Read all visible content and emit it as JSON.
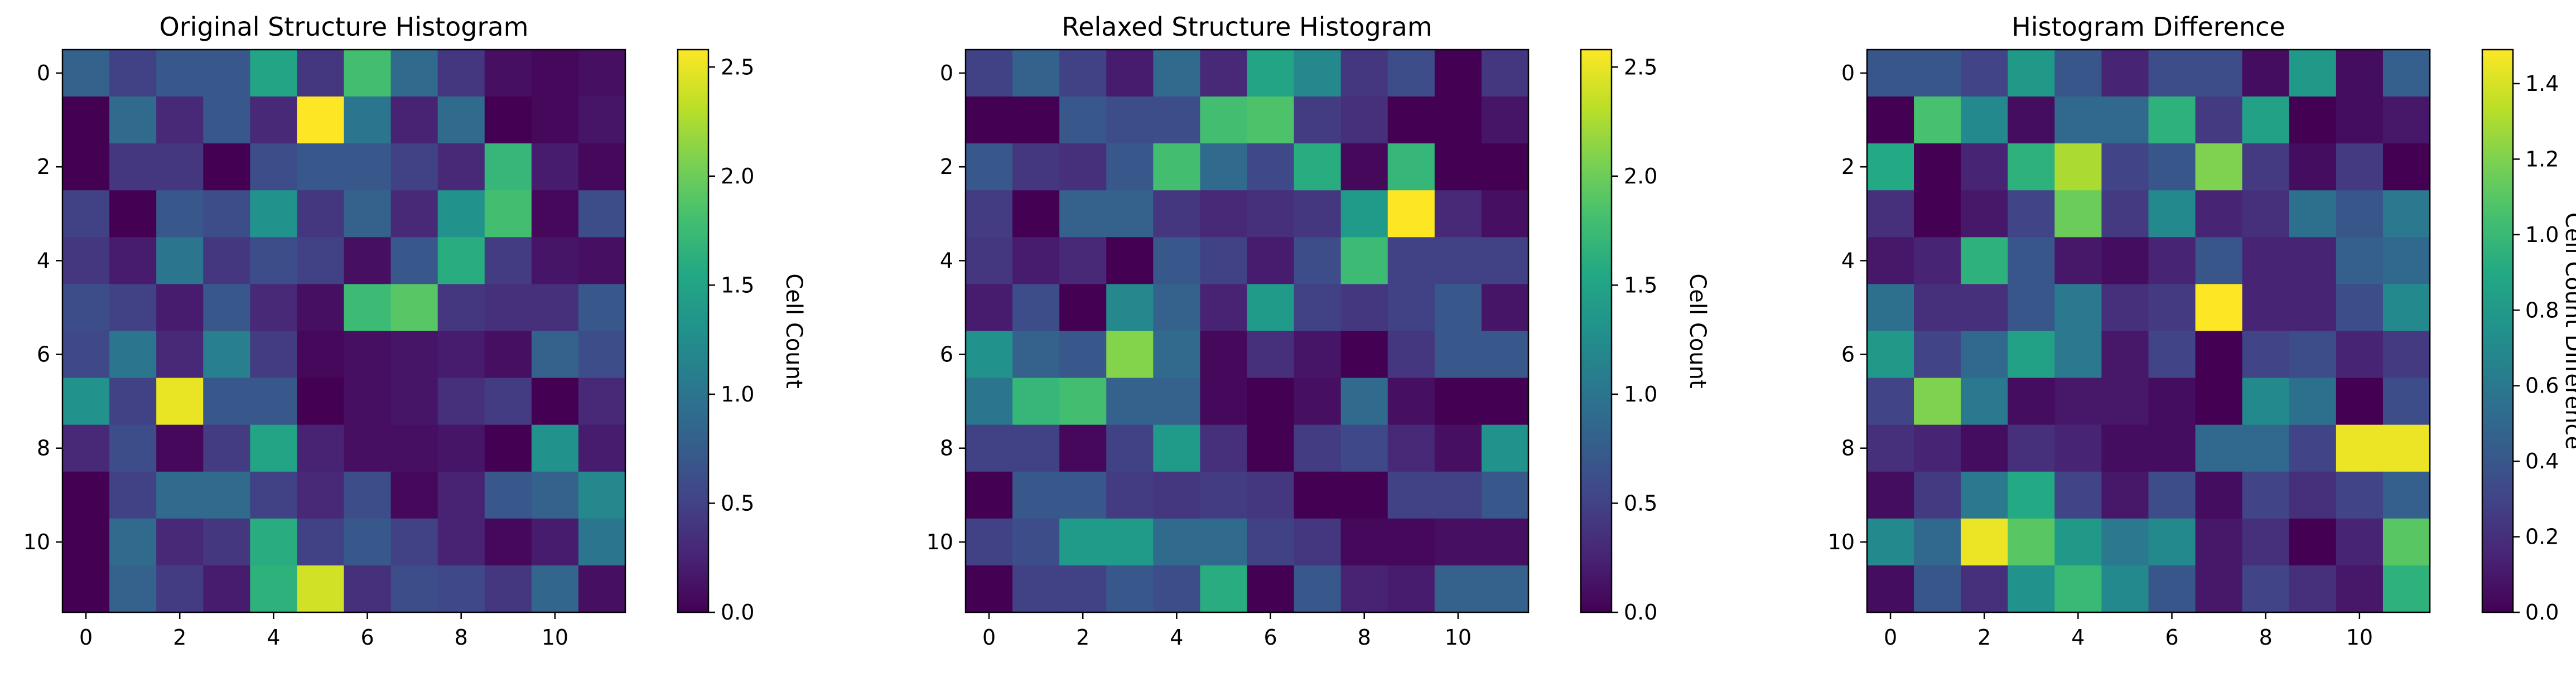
{
  "chart_data": [
    {
      "type": "heatmap",
      "title": "Original Structure Histogram",
      "colorbar_label": "Cell Count",
      "colormap": "viridis",
      "vmin": 0,
      "vmax": 2.58,
      "x_ticks": [
        "0",
        "2",
        "4",
        "6",
        "8",
        "10"
      ],
      "y_ticks": [
        "0",
        "2",
        "4",
        "6",
        "8",
        "10"
      ],
      "colorbar_ticks": [
        "0.0",
        "0.5",
        "1.0",
        "1.5",
        "2.0",
        "2.5"
      ],
      "values": [
        [
          0.8,
          0.5,
          0.7,
          0.7,
          1.5,
          0.4,
          1.8,
          0.9,
          0.4,
          0.1,
          0.05,
          0.1
        ],
        [
          0.0,
          0.9,
          0.3,
          0.7,
          0.3,
          2.58,
          1.0,
          0.25,
          0.9,
          0.0,
          0.05,
          0.15
        ],
        [
          0.0,
          0.4,
          0.4,
          0.0,
          0.6,
          0.7,
          0.7,
          0.5,
          0.3,
          1.7,
          0.2,
          0.05
        ],
        [
          0.5,
          0.0,
          0.7,
          0.6,
          1.3,
          0.4,
          0.8,
          0.3,
          1.3,
          1.8,
          0.05,
          0.6
        ],
        [
          0.4,
          0.2,
          1.0,
          0.4,
          0.6,
          0.5,
          0.1,
          0.7,
          1.6,
          0.45,
          0.15,
          0.1
        ],
        [
          0.6,
          0.5,
          0.2,
          0.7,
          0.3,
          0.1,
          1.75,
          1.9,
          0.4,
          0.35,
          0.35,
          0.7
        ],
        [
          0.55,
          1.0,
          0.3,
          1.1,
          0.45,
          0.05,
          0.1,
          0.15,
          0.2,
          0.1,
          0.8,
          0.6
        ],
        [
          1.3,
          0.5,
          2.5,
          0.7,
          0.7,
          0.0,
          0.1,
          0.15,
          0.35,
          0.45,
          0.0,
          0.3
        ],
        [
          0.3,
          0.6,
          0.05,
          0.45,
          1.5,
          0.25,
          0.1,
          0.1,
          0.15,
          0.0,
          1.3,
          0.2
        ],
        [
          0.0,
          0.5,
          0.9,
          0.9,
          0.5,
          0.3,
          0.6,
          0.05,
          0.25,
          0.7,
          0.8,
          1.2
        ],
        [
          0.0,
          0.9,
          0.3,
          0.4,
          1.6,
          0.5,
          0.7,
          0.5,
          0.25,
          0.05,
          0.2,
          1.0
        ],
        [
          0.0,
          0.8,
          0.45,
          0.2,
          1.65,
          2.4,
          0.35,
          0.6,
          0.55,
          0.4,
          0.85,
          0.1
        ]
      ]
    },
    {
      "type": "heatmap",
      "title": "Relaxed Structure Histogram",
      "colorbar_label": "Cell Count",
      "colormap": "viridis",
      "vmin": 0,
      "vmax": 2.58,
      "x_ticks": [
        "0",
        "2",
        "4",
        "6",
        "8",
        "10"
      ],
      "y_ticks": [
        "0",
        "2",
        "4",
        "6",
        "8",
        "10"
      ],
      "colorbar_ticks": [
        "0.0",
        "0.5",
        "1.0",
        "1.5",
        "2.0",
        "2.5"
      ],
      "values": [
        [
          0.5,
          0.8,
          0.5,
          0.2,
          0.9,
          0.3,
          1.5,
          1.2,
          0.4,
          0.6,
          0.0,
          0.4
        ],
        [
          0.0,
          0.0,
          0.7,
          0.6,
          0.6,
          1.8,
          1.85,
          0.45,
          0.35,
          0.0,
          0.0,
          0.15
        ],
        [
          0.7,
          0.4,
          0.35,
          0.7,
          1.8,
          0.9,
          0.55,
          1.6,
          0.05,
          1.7,
          0.0,
          0.0
        ],
        [
          0.45,
          0.0,
          0.8,
          0.8,
          0.4,
          0.3,
          0.35,
          0.4,
          1.4,
          2.58,
          0.3,
          0.1
        ],
        [
          0.4,
          0.2,
          0.3,
          0.0,
          0.7,
          0.5,
          0.2,
          0.6,
          1.75,
          0.5,
          0.5,
          0.5
        ],
        [
          0.2,
          0.6,
          0.0,
          1.2,
          0.8,
          0.25,
          1.4,
          0.5,
          0.4,
          0.5,
          0.7,
          0.15
        ],
        [
          1.3,
          0.8,
          0.7,
          2.1,
          0.9,
          0.05,
          0.35,
          0.15,
          0.0,
          0.4,
          0.7,
          0.7
        ],
        [
          1.0,
          1.7,
          1.8,
          0.8,
          0.8,
          0.05,
          0.0,
          0.1,
          0.9,
          0.1,
          0.0,
          0.0
        ],
        [
          0.5,
          0.5,
          0.05,
          0.5,
          1.4,
          0.35,
          0.0,
          0.45,
          0.55,
          0.3,
          0.1,
          1.3
        ],
        [
          0.0,
          0.7,
          0.7,
          0.45,
          0.4,
          0.45,
          0.4,
          0.0,
          0.0,
          0.5,
          0.5,
          0.7
        ],
        [
          0.5,
          0.6,
          1.4,
          1.4,
          0.9,
          0.9,
          0.5,
          0.4,
          0.05,
          0.05,
          0.1,
          0.1
        ],
        [
          0.0,
          0.5,
          0.5,
          0.7,
          0.6,
          1.6,
          0.0,
          0.7,
          0.25,
          0.2,
          0.8,
          0.8
        ]
      ]
    },
    {
      "type": "heatmap",
      "title": "Histogram Difference",
      "colorbar_label": "Cell Count Difference",
      "colormap": "viridis",
      "vmin": 0,
      "vmax": 1.49,
      "x_ticks": [
        "0",
        "2",
        "4",
        "6",
        "8",
        "10"
      ],
      "y_ticks": [
        "0",
        "2",
        "4",
        "6",
        "8",
        "10"
      ],
      "colorbar_ticks": [
        "0.0",
        "0.2",
        "0.4",
        "0.6",
        "0.8",
        "1.0",
        "1.2",
        "1.4"
      ],
      "values": [
        [
          0.4,
          0.4,
          0.3,
          0.8,
          0.4,
          0.15,
          0.35,
          0.35,
          0.05,
          0.8,
          0.05,
          0.45
        ],
        [
          0.0,
          1.05,
          0.7,
          0.05,
          0.5,
          0.5,
          0.95,
          0.25,
          0.85,
          0.0,
          0.05,
          0.1
        ],
        [
          0.9,
          0.0,
          0.15,
          0.95,
          1.3,
          0.3,
          0.4,
          1.2,
          0.25,
          0.05,
          0.25,
          0.0
        ],
        [
          0.2,
          0.0,
          0.1,
          0.3,
          1.15,
          0.25,
          0.7,
          0.15,
          0.2,
          0.55,
          0.4,
          0.6
        ],
        [
          0.1,
          0.15,
          0.95,
          0.4,
          0.1,
          0.05,
          0.15,
          0.4,
          0.15,
          0.15,
          0.45,
          0.5
        ],
        [
          0.55,
          0.2,
          0.2,
          0.4,
          0.6,
          0.2,
          0.25,
          1.49,
          0.15,
          0.15,
          0.35,
          0.7
        ],
        [
          0.8,
          0.3,
          0.5,
          0.85,
          0.6,
          0.1,
          0.3,
          0.0,
          0.3,
          0.35,
          0.15,
          0.25
        ],
        [
          0.3,
          1.2,
          0.6,
          0.05,
          0.1,
          0.1,
          0.05,
          0.0,
          0.7,
          0.55,
          0.0,
          0.35
        ],
        [
          0.2,
          0.15,
          0.05,
          0.2,
          0.15,
          0.05,
          0.05,
          0.5,
          0.5,
          0.3,
          1.45,
          1.45
        ],
        [
          0.05,
          0.25,
          0.6,
          0.9,
          0.3,
          0.1,
          0.35,
          0.05,
          0.3,
          0.2,
          0.3,
          0.45
        ],
        [
          0.7,
          0.5,
          1.45,
          1.1,
          0.8,
          0.6,
          0.7,
          0.1,
          0.2,
          0.0,
          0.15,
          1.1
        ],
        [
          0.05,
          0.4,
          0.2,
          0.75,
          1.0,
          0.7,
          0.4,
          0.1,
          0.3,
          0.2,
          0.1,
          0.95
        ]
      ]
    }
  ]
}
